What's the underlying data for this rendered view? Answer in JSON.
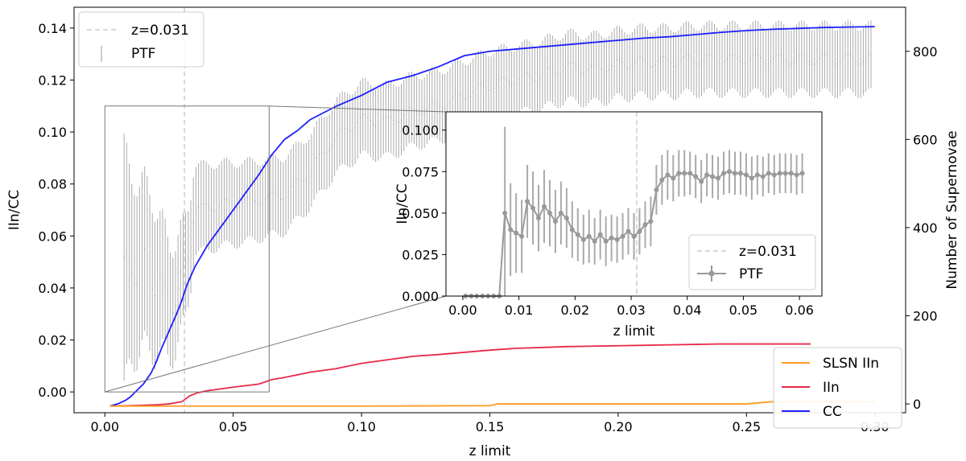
{
  "chart_data": [
    {
      "id": "main",
      "type": "line",
      "xlabel": "z limit",
      "ylabel_left": "IIn/CC",
      "ylabel_right": "Number of Supernovae",
      "xlim": [
        -0.012,
        0.312
      ],
      "ylim_left": [
        -0.008,
        0.148
      ],
      "ylim_right": [
        -20,
        900
      ],
      "xticks": [
        "0.00",
        "0.05",
        "0.10",
        "0.15",
        "0.20",
        "0.25",
        "0.30"
      ],
      "xtick_values": [
        0,
        0.05,
        0.1,
        0.15,
        0.2,
        0.25,
        0.3
      ],
      "yticks_left": [
        "0.00",
        "0.02",
        "0.04",
        "0.06",
        "0.08",
        "0.10",
        "0.12",
        "0.14"
      ],
      "ytick_values_left": [
        0,
        0.02,
        0.04,
        0.06,
        0.08,
        0.1,
        0.12,
        0.14
      ],
      "yticks_right": [
        "0",
        "200",
        "400",
        "600",
        "800"
      ],
      "ytick_values_right": [
        0,
        200,
        400,
        600,
        800
      ],
      "vline": {
        "x": 0.031,
        "label": "z=0.031"
      },
      "legend_left": [
        {
          "label": "z=0.031",
          "style": "dashed",
          "color": "#cccccc"
        },
        {
          "label": "PTF",
          "style": "errorbar",
          "color": "#aaaaaa"
        }
      ],
      "legend_right": [
        {
          "label": "SLSN IIn",
          "color": "#ff9a1f"
        },
        {
          "label": "IIn",
          "color": "#e8294a"
        },
        {
          "label": "CC",
          "color": "#1f1fff"
        }
      ],
      "series_right": [
        {
          "name": "CC",
          "color": "#1f1fff",
          "x": [
            0.002,
            0.005,
            0.008,
            0.01,
            0.012,
            0.015,
            0.018,
            0.02,
            0.022,
            0.025,
            0.028,
            0.03,
            0.032,
            0.035,
            0.038,
            0.04,
            0.045,
            0.05,
            0.055,
            0.06,
            0.065,
            0.07,
            0.075,
            0.08,
            0.09,
            0.1,
            0.11,
            0.12,
            0.13,
            0.14,
            0.15,
            0.16,
            0.17,
            0.18,
            0.19,
            0.2,
            0.21,
            0.22,
            0.23,
            0.24,
            0.25,
            0.26,
            0.27,
            0.28,
            0.29,
            0.3
          ],
          "y": [
            -5,
            0,
            8,
            16,
            28,
            45,
            70,
            95,
            125,
            165,
            205,
            235,
            270,
            310,
            340,
            360,
            400,
            440,
            480,
            520,
            565,
            600,
            620,
            645,
            675,
            700,
            730,
            745,
            765,
            790,
            800,
            805,
            810,
            815,
            820,
            825,
            830,
            833,
            838,
            843,
            847,
            850,
            852,
            854,
            855,
            856
          ]
        },
        {
          "name": "IIn",
          "color": "#e8294a",
          "x": [
            0.002,
            0.01,
            0.02,
            0.025,
            0.03,
            0.033,
            0.036,
            0.04,
            0.05,
            0.06,
            0.065,
            0.07,
            0.08,
            0.09,
            0.1,
            0.11,
            0.12,
            0.13,
            0.14,
            0.15,
            0.16,
            0.17,
            0.18,
            0.19,
            0.2,
            0.21,
            0.22,
            0.23,
            0.24,
            0.25,
            0.26,
            0.27,
            0.275
          ],
          "y": [
            -5,
            -4,
            -2,
            0,
            5,
            18,
            25,
            30,
            38,
            45,
            55,
            60,
            72,
            80,
            92,
            100,
            108,
            112,
            117,
            122,
            126,
            128,
            130,
            131,
            132,
            133,
            134,
            135,
            136,
            136,
            136,
            136,
            136
          ]
        },
        {
          "name": "SLSN IIn",
          "color": "#ff9a1f",
          "x": [
            0.002,
            0.05,
            0.1,
            0.15,
            0.153,
            0.2,
            0.25,
            0.26,
            0.3
          ],
          "y": [
            -5,
            -5,
            -5,
            -4,
            0,
            0,
            0,
            5,
            5
          ]
        }
      ],
      "ptf_errorbars": {
        "color": "#aaaaaa",
        "mean": [
          [
            0.007,
            0.05
          ],
          [
            0.01,
            0.045
          ],
          [
            0.015,
            0.05
          ],
          [
            0.02,
            0.042
          ],
          [
            0.025,
            0.037
          ],
          [
            0.028,
            0.035
          ],
          [
            0.03,
            0.042
          ],
          [
            0.035,
            0.07
          ],
          [
            0.045,
            0.072
          ],
          [
            0.055,
            0.073
          ],
          [
            0.06,
            0.074
          ],
          [
            0.07,
            0.076
          ],
          [
            0.08,
            0.085
          ],
          [
            0.09,
            0.098
          ],
          [
            0.1,
            0.105
          ],
          [
            0.11,
            0.104
          ],
          [
            0.12,
            0.108
          ],
          [
            0.13,
            0.11
          ],
          [
            0.14,
            0.114
          ],
          [
            0.15,
            0.118
          ],
          [
            0.16,
            0.12
          ],
          [
            0.17,
            0.122
          ],
          [
            0.18,
            0.125
          ],
          [
            0.19,
            0.124
          ],
          [
            0.2,
            0.126
          ],
          [
            0.21,
            0.127
          ],
          [
            0.22,
            0.127
          ],
          [
            0.23,
            0.128
          ],
          [
            0.24,
            0.128
          ],
          [
            0.25,
            0.128
          ],
          [
            0.26,
            0.128
          ],
          [
            0.27,
            0.128
          ],
          [
            0.3,
            0.128
          ]
        ],
        "err": [
          [
            0.007,
            0.05
          ],
          [
            0.01,
            0.035
          ],
          [
            0.015,
            0.032
          ],
          [
            0.02,
            0.028
          ],
          [
            0.025,
            0.022
          ],
          [
            0.03,
            0.02
          ],
          [
            0.035,
            0.017
          ],
          [
            0.045,
            0.016
          ],
          [
            0.06,
            0.015
          ],
          [
            0.08,
            0.014
          ],
          [
            0.1,
            0.014
          ],
          [
            0.15,
            0.013
          ],
          [
            0.2,
            0.013
          ],
          [
            0.25,
            0.013
          ],
          [
            0.3,
            0.013
          ]
        ],
        "x_range": [
          0.0075,
          0.2995
        ]
      },
      "zoom_box": {
        "x": [
          0.0,
          0.064
        ],
        "y": [
          0.0,
          0.11
        ]
      }
    },
    {
      "id": "inset",
      "type": "line",
      "xlabel": "z limit",
      "ylabel": "IIn/CC",
      "xlim": [
        -0.003,
        0.064
      ],
      "ylim": [
        0.0,
        0.111
      ],
      "xticks": [
        "0.00",
        "0.01",
        "0.02",
        "0.03",
        "0.04",
        "0.05",
        "0.06"
      ],
      "xtick_values": [
        0,
        0.01,
        0.02,
        0.03,
        0.04,
        0.05,
        0.06
      ],
      "yticks": [
        "0.000",
        "0.025",
        "0.050",
        "0.075",
        "0.100"
      ],
      "ytick_values": [
        0,
        0.025,
        0.05,
        0.075,
        0.1
      ],
      "vline": {
        "x": 0.031,
        "label": "z=0.031"
      },
      "legend": [
        {
          "label": "z=0.031",
          "style": "dashed",
          "color": "#cccccc"
        },
        {
          "label": "PTF",
          "style": "errorbar-marker",
          "color": "#999999"
        }
      ],
      "series": [
        {
          "name": "PTF",
          "color": "#999999",
          "x": [
            0.0005,
            0.0015,
            0.0025,
            0.0035,
            0.0045,
            0.0055,
            0.0065,
            0.0075,
            0.0085,
            0.0095,
            0.0105,
            0.0115,
            0.0125,
            0.0135,
            0.0145,
            0.0155,
            0.0165,
            0.0175,
            0.0185,
            0.0195,
            0.0205,
            0.0215,
            0.0225,
            0.0235,
            0.0245,
            0.0255,
            0.0265,
            0.0275,
            0.0285,
            0.0295,
            0.0305,
            0.0315,
            0.0325,
            0.0335,
            0.0345,
            0.0355,
            0.0365,
            0.0375,
            0.0385,
            0.0395,
            0.0405,
            0.0415,
            0.0425,
            0.0435,
            0.0445,
            0.0455,
            0.0465,
            0.0475,
            0.0485,
            0.0495,
            0.0505,
            0.0515,
            0.0525,
            0.0535,
            0.0545,
            0.0555,
            0.0565,
            0.0575,
            0.0585,
            0.0595,
            0.0605
          ],
          "y": [
            0,
            0,
            0,
            0,
            0,
            0,
            0,
            0.05,
            0.04,
            0.038,
            0.036,
            0.057,
            0.053,
            0.047,
            0.054,
            0.05,
            0.045,
            0.05,
            0.047,
            0.04,
            0.037,
            0.034,
            0.036,
            0.033,
            0.037,
            0.033,
            0.035,
            0.034,
            0.036,
            0.039,
            0.036,
            0.039,
            0.043,
            0.045,
            0.064,
            0.07,
            0.073,
            0.071,
            0.074,
            0.074,
            0.074,
            0.072,
            0.069,
            0.073,
            0.072,
            0.071,
            0.074,
            0.075,
            0.074,
            0.074,
            0.073,
            0.071,
            0.073,
            0.072,
            0.074,
            0.073,
            0.074,
            0.074,
            0.074,
            0.073,
            0.074
          ],
          "err": [
            0,
            0,
            0,
            0,
            0,
            0,
            0,
            0.052,
            0.028,
            0.024,
            0.022,
            0.022,
            0.022,
            0.02,
            0.022,
            0.02,
            0.019,
            0.019,
            0.018,
            0.017,
            0.016,
            0.015,
            0.016,
            0.014,
            0.015,
            0.015,
            0.014,
            0.014,
            0.014,
            0.014,
            0.014,
            0.014,
            0.014,
            0.015,
            0.015,
            0.015,
            0.015,
            0.014,
            0.014,
            0.014,
            0.013,
            0.013,
            0.013,
            0.013,
            0.013,
            0.013,
            0.013,
            0.013,
            0.013,
            0.013,
            0.013,
            0.013,
            0.012,
            0.012,
            0.012,
            0.012,
            0.012,
            0.012,
            0.012,
            0.012,
            0.012
          ]
        }
      ]
    }
  ]
}
